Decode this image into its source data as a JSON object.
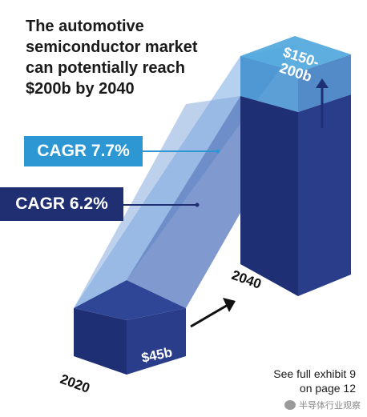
{
  "title_lines": [
    "The automotive",
    "semiconductor market",
    "can potentially reach",
    "$200b by 2040"
  ],
  "colors": {
    "front_dark": "#1e2f74",
    "side_dark": "#2a3d8a",
    "top_dark": "#2f4596",
    "range_top": "#4da6dc",
    "range_front": "#3e8ecf",
    "growth_light": "#a9c9ec",
    "growth_dark": "#3c5aa8",
    "cagr_high": "#2d97d3",
    "cagr_low": "#1f2f72"
  },
  "chart_data": {
    "type": "bar",
    "categories": [
      "2020",
      "2040"
    ],
    "series": [
      {
        "values": [
          45,
          150
        ]
      },
      {
        "values": [
          45,
          200
        ]
      }
    ],
    "bar_labels": [
      "$45b",
      "$150-\n200b"
    ],
    "annotations": {
      "cagr_high": "CAGR 7.7%",
      "cagr_low": "CAGR 6.2%"
    }
  },
  "footnote": [
    "See full exhibit 9",
    "on page 12"
  ],
  "watermark": {
    "icon": "wechat-icon",
    "text": "半导体行业观察"
  }
}
